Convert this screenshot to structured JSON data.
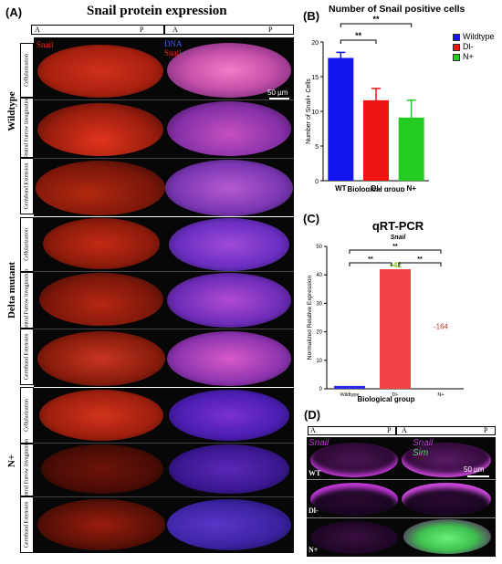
{
  "panel_a": {
    "letter": "(A)",
    "title": "Snail protein expression",
    "ap_left": {
      "a": "A",
      "p": "P"
    },
    "ap_right": {
      "a": "A",
      "p": "P"
    },
    "channel_left": "Snail",
    "channel_right_1": "DNA",
    "channel_right_2": "Snail",
    "scale_bar": "50 µm",
    "groups": [
      {
        "label": "Wildtype",
        "stages": [
          "Cellularization",
          "Ventral Furrow Invagination",
          "Germband Extension"
        ]
      },
      {
        "label": "Delta mutant",
        "stages": [
          "Cellularization",
          "Ventral Furrow Invagination",
          "Germband Extension"
        ]
      },
      {
        "label": "N+",
        "stages": [
          "Cellularization",
          "Ventral Furrow Invagination",
          "Germband Extension"
        ]
      }
    ],
    "colors": {
      "snail": "#e8321c",
      "dna_merge": "#8a3fd8",
      "background": "#070707"
    }
  },
  "chart_data": [
    {
      "panel": "(B)",
      "type": "bar",
      "title": "Number of Snail positive cells",
      "xlabel": "Biological group",
      "ylabel": "Number of Snail+ Cells",
      "categories": [
        "WT",
        "Dl-",
        "N+"
      ],
      "values": [
        17.7,
        11.6,
        9.1
      ],
      "errors": [
        0.8,
        1.7,
        2.5
      ],
      "colors": [
        "#1414f0",
        "#f01414",
        "#22cc22"
      ],
      "ylim": [
        0,
        20
      ],
      "yticks": [
        0,
        5,
        10,
        15,
        20
      ],
      "legend": [
        "Wildtype",
        "Dl-",
        "N+"
      ],
      "legend_position": "top-right",
      "significance": [
        {
          "from": "WT",
          "to": "Dl-",
          "label": "**"
        },
        {
          "from": "WT",
          "to": "N+",
          "label": "**"
        }
      ]
    },
    {
      "panel": "(C)",
      "type": "bar",
      "title": "qRT-PCR",
      "subtitle": "Snail",
      "xlabel": "Biological group",
      "ylabel": "Normalized Relative Expression",
      "categories": [
        "Wildtype",
        "Dl-",
        "N+"
      ],
      "values": [
        1,
        42,
        0
      ],
      "colors": [
        "#2a2ae0",
        "#f24444",
        "#22cc22"
      ],
      "ylim": [
        0,
        50
      ],
      "yticks": [
        0,
        10,
        20,
        30,
        40,
        50
      ],
      "annotations": [
        {
          "category": "Dl-",
          "text": "+42",
          "color": "#7fc21e"
        },
        {
          "category": "N+",
          "text": "-164",
          "color": "#c0392b"
        }
      ],
      "significance": [
        {
          "from": "Wildtype",
          "to": "Dl-",
          "label": "**"
        },
        {
          "from": "Dl-",
          "to": "N+",
          "label": "**"
        },
        {
          "from": "Wildtype",
          "to": "N+",
          "label": "**"
        }
      ]
    }
  ],
  "panel_d": {
    "letter": "(D)",
    "ap_left": {
      "a": "A",
      "p": "P"
    },
    "ap_right": {
      "a": "A",
      "p": "P"
    },
    "channel_left": "Snail",
    "channel_right_1": "Snail",
    "channel_right_2": "Sim",
    "rows": [
      "WT",
      "Dl-",
      "N+"
    ],
    "scale_bar": "50 µm",
    "colors": {
      "snail": "#c23ad8",
      "sim": "#3fe04f"
    }
  }
}
